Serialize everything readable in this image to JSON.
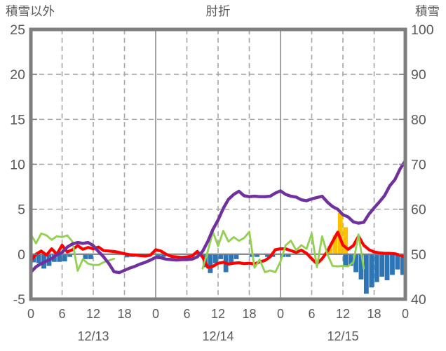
{
  "header": {
    "left_axis_title": "積雪以外",
    "title": "肘折",
    "right_axis_title": "積雪"
  },
  "colors": {
    "snow_depth_line": "#7030A0",
    "red_line": "#FF0000",
    "green_line": "#92D050",
    "blue_bars": "#2E75B6",
    "orange_bars": "#FFC000",
    "border": "#7F7F7F",
    "gridline": "#A6A6A6",
    "zero_line": "#808080",
    "text": "#595959"
  },
  "chart_data": {
    "type": "line",
    "title": "肘折",
    "x_unit": "hour",
    "x_range_hours": [
      0,
      72
    ],
    "x_tick_hours": [
      0,
      6,
      12,
      18,
      24,
      30,
      36,
      42,
      48,
      54,
      60,
      66,
      72
    ],
    "x_tick_labels": [
      "0",
      "6",
      "12",
      "18",
      "0",
      "6",
      "12",
      "18",
      "0",
      "6",
      "12",
      "18",
      "0"
    ],
    "day_labels": [
      {
        "label": "12/13",
        "center_hour": 12
      },
      {
        "label": "12/14",
        "center_hour": 36
      },
      {
        "label": "12/15",
        "center_hour": 60
      }
    ],
    "left_axis": {
      "title": "積雪以外",
      "min": -5,
      "max": 25,
      "ticks": [
        25,
        20,
        15,
        10,
        5,
        0,
        -5
      ]
    },
    "right_axis": {
      "title": "積雪",
      "min": 40,
      "max": 100,
      "ticks": [
        100,
        90,
        80,
        70,
        60,
        50,
        40
      ]
    },
    "grid": {
      "h_dashed_left_values": [
        20,
        15,
        10,
        5
      ],
      "v_solid_hours": [
        24,
        48
      ],
      "v_dashed_hours": [
        6,
        12,
        18,
        30,
        36,
        42,
        54,
        60,
        66
      ]
    },
    "series": [
      {
        "name": "blue-bars",
        "type": "bar",
        "axis": "left",
        "color": "#2E75B6",
        "values": [
          -0.9,
          -1.0,
          -1.6,
          -1.3,
          -0.85,
          -0.85,
          -0.8,
          -0.3,
          null,
          null,
          -0.55,
          -0.55,
          null,
          null,
          null,
          null,
          null,
          null,
          -0.35,
          -0.3,
          null,
          null,
          -0.3,
          null,
          -0.3,
          -0.3,
          null,
          null,
          null,
          null,
          null,
          null,
          null,
          -1.45,
          -2.1,
          -1.0,
          -0.55,
          -2.0,
          -1.0,
          -0.55,
          null,
          null,
          -0.3,
          -0.3,
          null,
          -0.3,
          -0.3,
          null,
          -0.3,
          -0.3,
          null,
          null,
          null,
          null,
          null,
          null,
          null,
          null,
          null,
          null,
          -1.3,
          -1.3,
          -2.0,
          -2.8,
          -4.4,
          -3.7,
          -3.1,
          -2.5,
          -2.9,
          -2.3,
          -1.7,
          -2.3
        ]
      },
      {
        "name": "orange-bars",
        "type": "bar",
        "axis": "left",
        "color": "#FFC000",
        "values": [
          null,
          null,
          null,
          null,
          null,
          null,
          null,
          null,
          null,
          null,
          null,
          null,
          null,
          null,
          null,
          null,
          null,
          null,
          null,
          null,
          null,
          null,
          null,
          null,
          null,
          null,
          null,
          null,
          null,
          null,
          null,
          null,
          null,
          null,
          null,
          null,
          null,
          null,
          null,
          null,
          null,
          null,
          null,
          null,
          null,
          null,
          null,
          null,
          null,
          null,
          null,
          null,
          null,
          null,
          null,
          null,
          null,
          0.9,
          2.1,
          4.6,
          3.0,
          null,
          null,
          null,
          null,
          null,
          null,
          null,
          null,
          null,
          null,
          null
        ]
      },
      {
        "name": "red-line",
        "type": "line",
        "axis": "left",
        "color": "#FF0000",
        "width": 4.2,
        "values": [
          -0.7,
          0.0,
          0.35,
          -0.1,
          0.6,
          0.0,
          1.0,
          0.25,
          0.5,
          0.95,
          0.55,
          0.75,
          0.6,
          0.8,
          0.4,
          0.35,
          0.3,
          0.2,
          0.05,
          -0.05,
          -0.1,
          -0.15,
          -0.2,
          -0.1,
          0.5,
          0.35,
          0.0,
          -0.25,
          -0.3,
          -0.35,
          -0.3,
          -0.2,
          0.3,
          -0.3,
          -1.45,
          -1.35,
          -1.0,
          -0.9,
          -1.1,
          -1.0,
          -0.95,
          -1.05,
          -1.0,
          -1.1,
          -0.85,
          -0.7,
          -0.3,
          0.5,
          0.6,
          0.6,
          0.4,
          0.2,
          0.45,
          0.1,
          -0.5,
          -1.05,
          -0.5,
          0.3,
          1.4,
          2.45,
          1.0,
          0.55,
          0.95,
          2.0,
          1.0,
          0.5,
          0.25,
          0.15,
          0.1,
          0.1,
          0.05,
          -0.1,
          -0.35
        ]
      },
      {
        "name": "green-line",
        "type": "line",
        "axis": "left",
        "color": "#92D050",
        "width": 2.8,
        "values": [
          2.2,
          1.2,
          2.3,
          2.1,
          1.6,
          2.0,
          1.9,
          2.1,
          1.4,
          -1.85,
          -0.55,
          -1.05,
          -1.2,
          -1.2,
          -0.9,
          -0.7,
          -0.5,
          null,
          null,
          null,
          null,
          null,
          null,
          null,
          null,
          null,
          null,
          null,
          null,
          null,
          null,
          null,
          null,
          -1.6,
          0.3,
          2.5,
          0.9,
          2.6,
          1.4,
          1.9,
          1.5,
          1.8,
          2.5,
          -1.5,
          -0.6,
          -2.0,
          -1.8,
          -2.0,
          -0.8,
          1.0,
          1.5,
          0.45,
          1.0,
          0.6,
          2.3,
          -1.45,
          2.0,
          0.0,
          -1.3,
          -1.35,
          -1.3,
          -1.35,
          -0.9,
          2.2,
          -1.6,
          null,
          null,
          null,
          null,
          null,
          null,
          null,
          null
        ]
      },
      {
        "name": "snow-depth-line",
        "type": "line",
        "axis": "right",
        "color": "#7030A0",
        "width": 4.4,
        "values": [
          46.0,
          47.2,
          47.9,
          48.5,
          49.0,
          49.9,
          50.4,
          51.6,
          52.3,
          52.6,
          52.4,
          52.6,
          51.9,
          50.6,
          49.4,
          47.9,
          46.1,
          45.9,
          46.4,
          46.9,
          47.3,
          47.8,
          48.2,
          48.7,
          49.3,
          49.2,
          48.9,
          48.8,
          48.7,
          48.8,
          48.8,
          48.9,
          49.4,
          50.6,
          52.8,
          55.5,
          57.6,
          60.2,
          62.2,
          63.3,
          64.0,
          63.0,
          62.8,
          62.9,
          62.8,
          62.8,
          62.9,
          63.6,
          64.1,
          63.3,
          62.9,
          62.7,
          62.1,
          61.9,
          62.3,
          62.6,
          62.9,
          61.6,
          60.6,
          60.0,
          58.8,
          58.3,
          57.2,
          56.9,
          57.1,
          58.9,
          60.3,
          61.6,
          63.0,
          65.2,
          66.6,
          69.0,
          70.8
        ]
      }
    ]
  }
}
